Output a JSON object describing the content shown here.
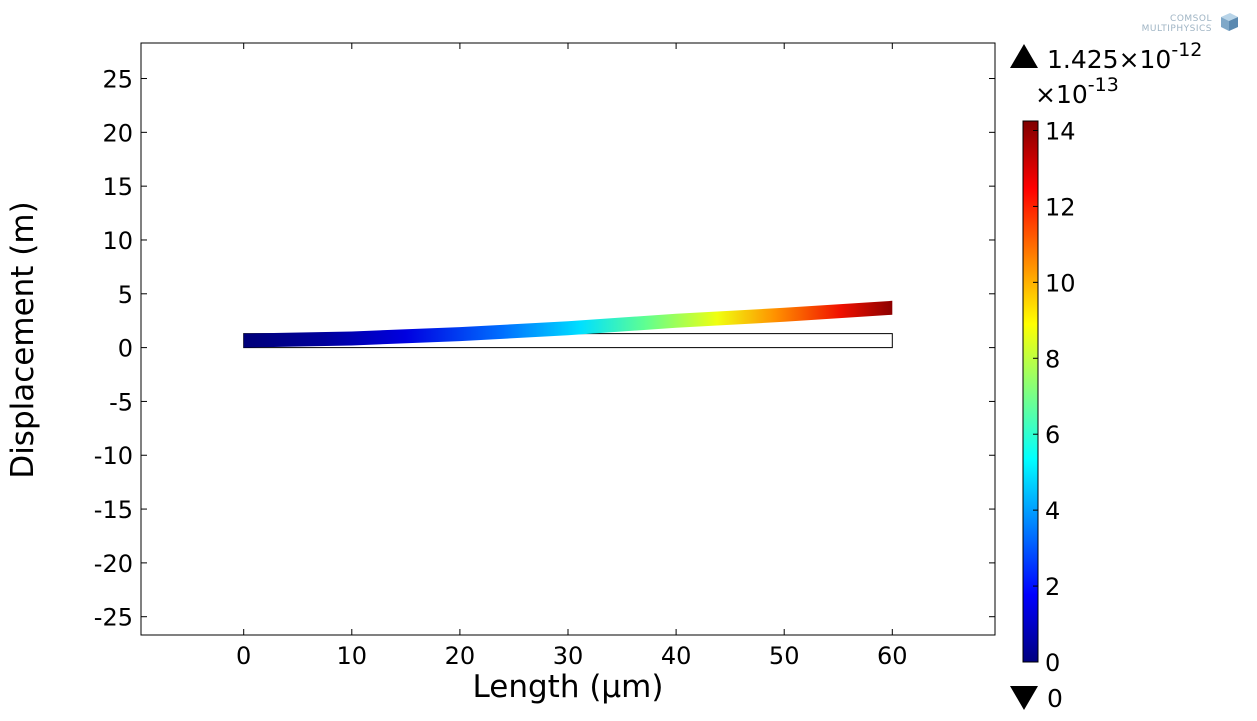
{
  "chart_data": {
    "type": "heatmap",
    "xlabel": "Length (µm)",
    "ylabel": "Displacement (m)",
    "x_ticks": [
      0,
      10,
      20,
      30,
      40,
      50,
      60
    ],
    "y_ticks": [
      25,
      20,
      15,
      10,
      5,
      0,
      -5,
      -10,
      -15,
      -20,
      -25
    ],
    "xlim": [
      -9.5,
      69.5
    ],
    "ylim": [
      -26.7,
      28.3
    ],
    "grid": false,
    "undeformed_beam": {
      "x": [
        0,
        60
      ],
      "y": [
        0,
        1.3
      ]
    },
    "deformed_centerline": [
      {
        "x": 0,
        "y": 0.65
      },
      {
        "x": 10,
        "y": 0.85
      },
      {
        "x": 20,
        "y": 1.25
      },
      {
        "x": 30,
        "y": 1.8
      },
      {
        "x": 40,
        "y": 2.5
      },
      {
        "x": 50,
        "y": 3.05
      },
      {
        "x": 60,
        "y": 3.7
      }
    ],
    "beam_thickness": 1.3,
    "color_scale": {
      "colormap": "rainbow (jet)",
      "multiplier_label": "×10",
      "multiplier_exp": "-13",
      "ticks": [
        {
          "value": 0,
          "label": "0"
        },
        {
          "value": 2,
          "label": "2"
        },
        {
          "value": 4,
          "label": "4"
        },
        {
          "value": 6,
          "label": "6"
        },
        {
          "value": 8,
          "label": "8"
        },
        {
          "value": 10,
          "label": "10"
        },
        {
          "value": 12,
          "label": "12"
        },
        {
          "value": 14,
          "label": "14"
        }
      ],
      "range": [
        0,
        14.25
      ],
      "max_label": "1.425×10",
      "max_exp": "-12",
      "min_label": "0"
    }
  },
  "logo": {
    "line1": "COMSOL",
    "line2": "MULTIPHYSICS"
  }
}
